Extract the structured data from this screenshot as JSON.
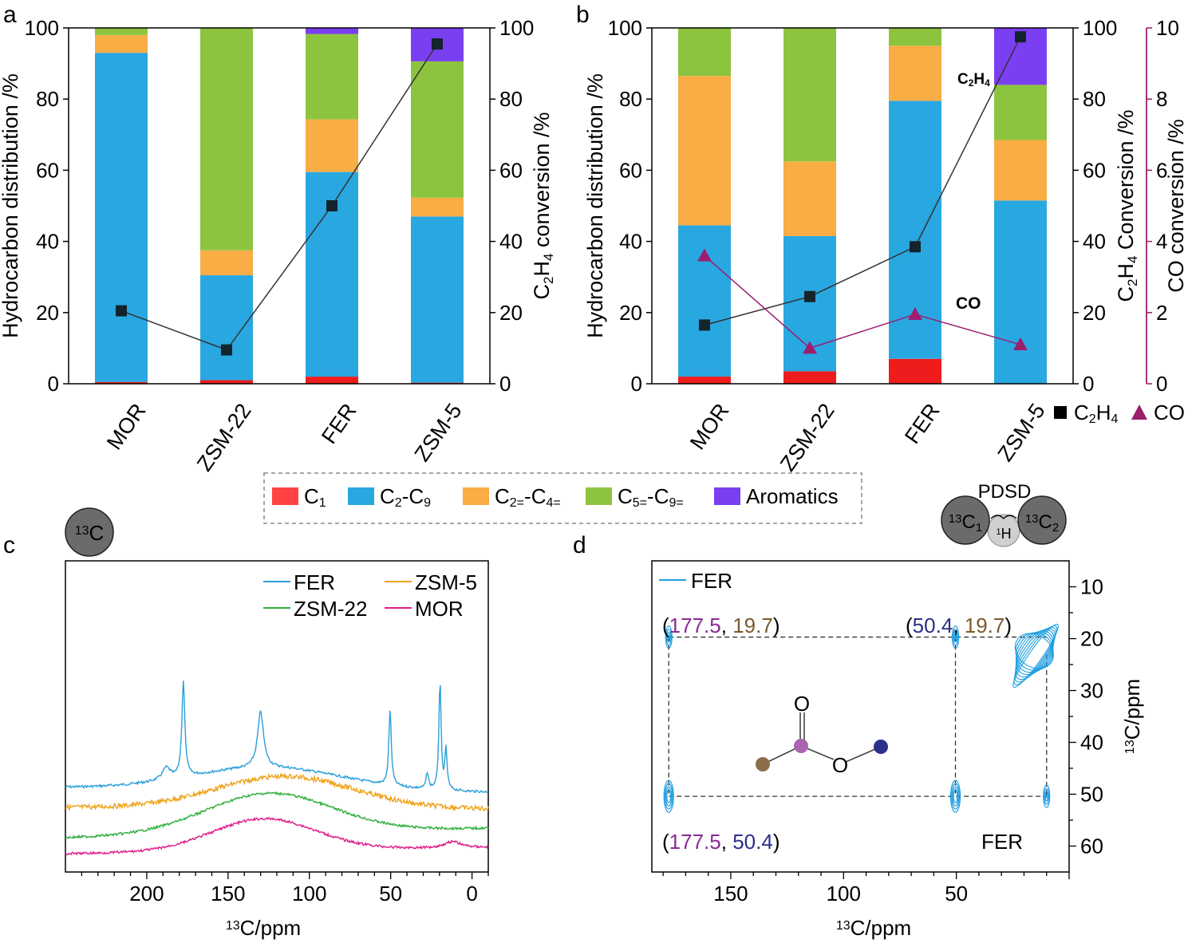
{
  "chart_data": [
    {
      "panel": "a",
      "type": "bar",
      "stacked": true,
      "categories": [
        "MOR",
        "ZSM-22",
        "FER",
        "ZSM-5"
      ],
      "series": [
        {
          "name": "C1",
          "color": "#ee1c1c",
          "values": [
            0.5,
            1.0,
            2.0,
            0.3
          ]
        },
        {
          "name": "C2-C9",
          "color": "#29a7e1",
          "values": [
            92.5,
            29.5,
            57.5,
            46.7
          ]
        },
        {
          "name": "C2=-C4=",
          "color": "#f8ad45",
          "values": [
            5.0,
            7.0,
            14.8,
            5.3
          ]
        },
        {
          "name": "C5=-C9=",
          "color": "#8dc43f",
          "values": [
            2.0,
            62.5,
            24.0,
            38.3
          ]
        },
        {
          "name": "Aromatics",
          "color": "#7b3ff2",
          "values": [
            0,
            0,
            1.7,
            9.4
          ]
        }
      ],
      "line": {
        "name": "C2H4 conversion",
        "values": [
          20.5,
          9.5,
          50,
          95.5
        ],
        "color": "#333333"
      },
      "ylabel": "Hydrocarbon distribution /%",
      "ylim": [
        0,
        100
      ],
      "yticks": [
        "0",
        "20",
        "40",
        "60",
        "80",
        "100"
      ],
      "y2label": "C2H4 conversion /%",
      "y2lim": [
        0,
        100
      ],
      "y2ticks": [
        "0",
        "20",
        "40",
        "60",
        "80",
        "100"
      ]
    },
    {
      "panel": "b",
      "type": "bar",
      "stacked": true,
      "categories": [
        "MOR",
        "ZSM-22",
        "FER",
        "ZSM-5"
      ],
      "series": [
        {
          "name": "C1",
          "color": "#ee1c1c",
          "values": [
            2.0,
            3.5,
            7.0,
            0
          ]
        },
        {
          "name": "C2-C9",
          "color": "#29a7e1",
          "values": [
            42.5,
            38.0,
            72.5,
            51.5
          ]
        },
        {
          "name": "C2=-C4=",
          "color": "#f8ad45",
          "values": [
            42.0,
            21.0,
            15.5,
            17.0
          ]
        },
        {
          "name": "C5=-C9=",
          "color": "#8dc43f",
          "values": [
            13.5,
            37.5,
            5.0,
            15.5
          ]
        },
        {
          "name": "Aromatics",
          "color": "#7b3ff2",
          "values": [
            0,
            0,
            0,
            16.0
          ]
        }
      ],
      "line_c2h4": {
        "name": "C2H4",
        "values": [
          16.5,
          24.5,
          38.5,
          97.5
        ],
        "color": "#333333"
      },
      "line_co": {
        "name": "CO",
        "values": [
          3.6,
          1.0,
          1.95,
          1.1
        ],
        "color": "#9c1e6e"
      },
      "ylabel": "Hydrocarbon distribution /%",
      "ylim": [
        0,
        100
      ],
      "yticks": [
        "0",
        "20",
        "40",
        "60",
        "80",
        "100"
      ],
      "y2label": "C2H4 Conversion /%",
      "y2ticks": [
        "0",
        "20",
        "40",
        "60",
        "80",
        "100"
      ],
      "y3label": "CO conversion /%",
      "y3lim": [
        0,
        10
      ],
      "y3ticks": [
        "0",
        "2",
        "4",
        "6",
        "8",
        "10"
      ],
      "annotations": {
        "c2h4": "C2H4",
        "co": "CO"
      },
      "legend": {
        "square_label": "C2H4",
        "triangle_label": "CO"
      }
    },
    {
      "panel": "c",
      "type": "line",
      "xlabel": "13C/ppm",
      "xlim": [
        250,
        -10
      ],
      "xticks": [
        "200",
        "150",
        "100",
        "50",
        "0"
      ],
      "badge": "13C",
      "series": [
        {
          "name": "FER",
          "color": "#2a9fd8"
        },
        {
          "name": "ZSM-5",
          "color": "#efa219"
        },
        {
          "name": "ZSM-22",
          "color": "#2fae3c"
        },
        {
          "name": "MOR",
          "color": "#e0198a"
        }
      ],
      "peaks_ppm": {
        "FER": [
          177.5,
          130,
          50.4,
          27,
          19.7,
          16
        ]
      }
    },
    {
      "panel": "d",
      "type": "scatter",
      "xlabel": "13C/ppm",
      "ylabel": "13C/ppm",
      "xlim": [
        185,
        0
      ],
      "ylim": [
        65,
        5
      ],
      "xticks": [
        "150",
        "100",
        "50"
      ],
      "yticks": [
        "10",
        "20",
        "30",
        "40",
        "50",
        "60"
      ],
      "legend_label": "FER",
      "sample_label": "FER",
      "badge": {
        "title": "PDSD",
        "left": "13C1",
        "right": "13C2",
        "middle": "1H"
      },
      "cross_peaks": [
        {
          "x": 177.5,
          "y": 19.7
        },
        {
          "x": 50.4,
          "y": 19.7
        },
        {
          "x": 177.5,
          "y": 50.4
        },
        {
          "x": 50.4,
          "y": 50.4
        },
        {
          "x": 10,
          "y": 50.4
        }
      ],
      "labels": [
        {
          "a": "177.5",
          "b": "19.7"
        },
        {
          "a": "50.4",
          "b": "19.7"
        },
        {
          "a": "177.5",
          "b": "50.4"
        }
      ],
      "molecule_atoms": {
        "carbonyl_o": "O",
        "ester_o": "O"
      }
    }
  ],
  "legend": {
    "items": [
      {
        "label": "C1",
        "color": "#ff4343"
      },
      {
        "label": "C2-C9",
        "color": "#29a7e1"
      },
      {
        "label": "C2=-C4=",
        "color": "#f8ad45"
      },
      {
        "label": "C5=-C9=",
        "color": "#8dc43f"
      },
      {
        "label": "Aromatics",
        "color": "#7b3ff2"
      }
    ]
  },
  "panel_labels": [
    "a",
    "b",
    "c",
    "d"
  ]
}
